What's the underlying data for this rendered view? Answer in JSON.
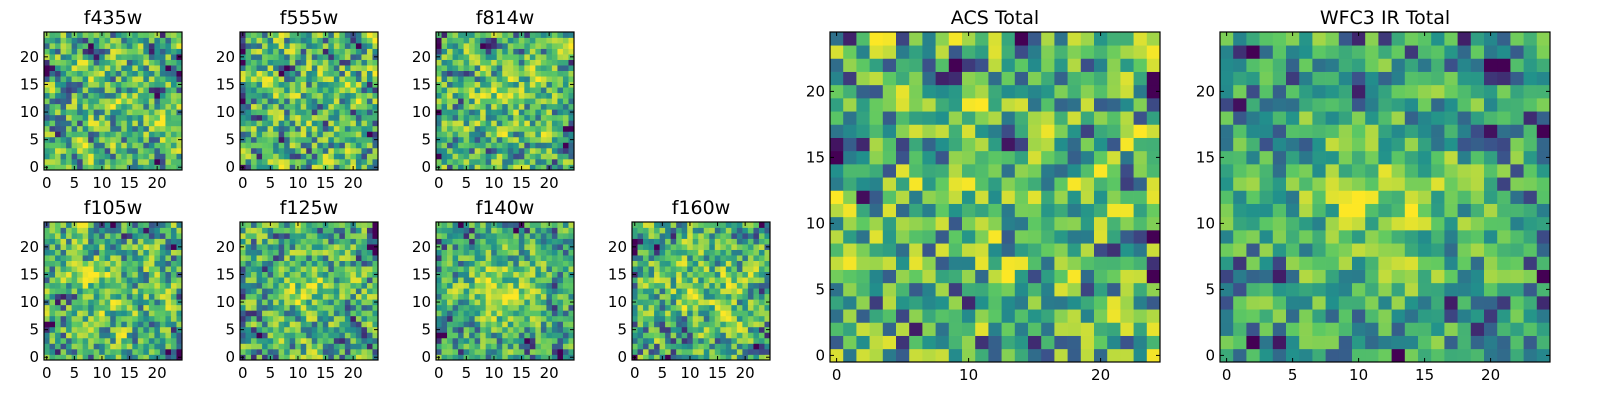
{
  "figure": {
    "description_hidden": false
  },
  "colormap": [
    "#440154",
    "#3b528b",
    "#21918c",
    "#5ec962",
    "#fde725"
  ],
  "chart_data": [
    {
      "type": "heatmap",
      "title": "f435w",
      "size": 25,
      "seed": 11,
      "center_strength": 0.05,
      "xlim": [
        -0.5,
        24.5
      ],
      "ylim": [
        -0.5,
        24.5
      ],
      "xticks": [
        0,
        5,
        10,
        15,
        20
      ],
      "yticks": [
        0,
        5,
        10,
        15,
        20
      ],
      "xtick_labels": [
        "0",
        "5",
        "10",
        "15",
        "20"
      ],
      "ytick_labels": [
        "0",
        "5",
        "10",
        "15",
        "20"
      ],
      "xlabel": "",
      "ylabel": "",
      "colorscale": "viridis"
    },
    {
      "type": "heatmap",
      "title": "f555w",
      "size": 25,
      "seed": 23,
      "center_strength": 0.02,
      "xlim": [
        -0.5,
        24.5
      ],
      "ylim": [
        -0.5,
        24.5
      ],
      "xticks": [
        0,
        5,
        10,
        15,
        20
      ],
      "yticks": [
        0,
        5,
        10,
        15,
        20
      ],
      "xtick_labels": [
        "0",
        "5",
        "10",
        "15",
        "20"
      ],
      "ytick_labels": [
        "0",
        "5",
        "10",
        "15",
        "20"
      ],
      "xlabel": "",
      "ylabel": "",
      "colorscale": "viridis"
    },
    {
      "type": "heatmap",
      "title": "f814w",
      "size": 25,
      "seed": 37,
      "center_strength": 0.12,
      "xlim": [
        -0.5,
        24.5
      ],
      "ylim": [
        -0.5,
        24.5
      ],
      "xticks": [
        0,
        5,
        10,
        15,
        20
      ],
      "yticks": [
        0,
        5,
        10,
        15,
        20
      ],
      "xtick_labels": [
        "0",
        "5",
        "10",
        "15",
        "20"
      ],
      "ytick_labels": [
        "0",
        "5",
        "10",
        "15",
        "20"
      ],
      "xlabel": "",
      "ylabel": "",
      "colorscale": "viridis"
    },
    {
      "type": "heatmap",
      "title": "f105w",
      "size": 25,
      "seed": 41,
      "center_strength": 0.15,
      "xlim": [
        -0.5,
        24.5
      ],
      "ylim": [
        -0.5,
        24.5
      ],
      "xticks": [
        0,
        5,
        10,
        15,
        20
      ],
      "yticks": [
        0,
        5,
        10,
        15,
        20
      ],
      "xtick_labels": [
        "0",
        "5",
        "10",
        "15",
        "20"
      ],
      "ytick_labels": [
        "0",
        "5",
        "10",
        "15",
        "20"
      ],
      "xlabel": "",
      "ylabel": "",
      "colorscale": "viridis"
    },
    {
      "type": "heatmap",
      "title": "f125w",
      "size": 25,
      "seed": 53,
      "center_strength": 0.15,
      "xlim": [
        -0.5,
        24.5
      ],
      "ylim": [
        -0.5,
        24.5
      ],
      "xticks": [
        0,
        5,
        10,
        15,
        20
      ],
      "yticks": [
        0,
        5,
        10,
        15,
        20
      ],
      "xtick_labels": [
        "0",
        "5",
        "10",
        "15",
        "20"
      ],
      "ytick_labels": [
        "0",
        "5",
        "10",
        "15",
        "20"
      ],
      "xlabel": "",
      "ylabel": "",
      "colorscale": "viridis"
    },
    {
      "type": "heatmap",
      "title": "f140w",
      "size": 25,
      "seed": 67,
      "center_strength": 0.3,
      "xlim": [
        -0.5,
        24.5
      ],
      "ylim": [
        -0.5,
        24.5
      ],
      "xticks": [
        0,
        5,
        10,
        15,
        20
      ],
      "yticks": [
        0,
        5,
        10,
        15,
        20
      ],
      "xtick_labels": [
        "0",
        "5",
        "10",
        "15",
        "20"
      ],
      "ytick_labels": [
        "0",
        "5",
        "10",
        "15",
        "20"
      ],
      "xlabel": "",
      "ylabel": "",
      "colorscale": "viridis"
    },
    {
      "type": "heatmap",
      "title": "f160w",
      "size": 25,
      "seed": 79,
      "center_strength": 0.2,
      "xlim": [
        -0.5,
        24.5
      ],
      "ylim": [
        -0.5,
        24.5
      ],
      "xticks": [
        0,
        5,
        10,
        15,
        20
      ],
      "yticks": [
        0,
        5,
        10,
        15,
        20
      ],
      "xtick_labels": [
        "0",
        "5",
        "10",
        "15",
        "20"
      ],
      "ytick_labels": [
        "0",
        "5",
        "10",
        "15",
        "20"
      ],
      "xlabel": "",
      "ylabel": "",
      "colorscale": "viridis"
    },
    {
      "type": "heatmap",
      "title": "ACS Total",
      "size": 25,
      "seed": 89,
      "center_strength": 0.05,
      "xlim": [
        -0.5,
        24.5
      ],
      "ylim": [
        -0.5,
        24.5
      ],
      "xticks": [
        0,
        10,
        20
      ],
      "yticks": [
        0,
        5,
        10,
        15,
        20
      ],
      "xtick_labels": [
        "0",
        "10",
        "20"
      ],
      "ytick_labels": [
        "0",
        "5",
        "10",
        "15",
        "20"
      ],
      "xlabel": "",
      "ylabel": "",
      "colorscale": "viridis"
    },
    {
      "type": "heatmap",
      "title": "WFC3 IR Total",
      "size": 25,
      "seed": 97,
      "center_strength": 0.35,
      "xlim": [
        -0.5,
        24.5
      ],
      "ylim": [
        -0.5,
        24.5
      ],
      "xticks": [
        0,
        5,
        10,
        15,
        20
      ],
      "yticks": [
        0,
        5,
        10,
        15,
        20
      ],
      "xtick_labels": [
        "0",
        "5",
        "10",
        "15",
        "20"
      ],
      "ytick_labels": [
        "0",
        "5",
        "10",
        "15",
        "20"
      ],
      "xlabel": "",
      "ylabel": "",
      "colorscale": "viridis"
    }
  ]
}
